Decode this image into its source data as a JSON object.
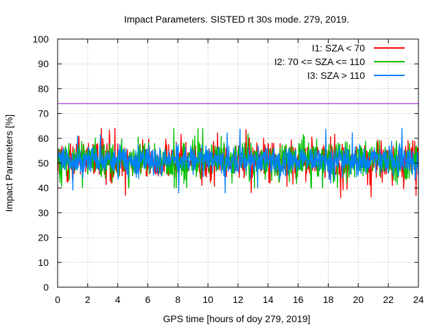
{
  "chart_data": {
    "type": "line",
    "title": "Impact Parameters. SISTED rt 30s mode. 279, 2019.",
    "xlabel": "GPS time [hours of doy 279, 2019]",
    "ylabel": "Impact Parameters [%]",
    "xlim": [
      0,
      24
    ],
    "ylim": [
      0,
      100
    ],
    "x_ticks": [
      "0",
      "2",
      "4",
      "6",
      "8",
      "10",
      "12",
      "14",
      "16",
      "18",
      "20",
      "22",
      "24"
    ],
    "y_ticks": [
      "0",
      "10",
      "20",
      "30",
      "40",
      "50",
      "60",
      "70",
      "80",
      "90",
      "100"
    ],
    "grid": true,
    "legend_position": "top-right",
    "threshold_line": {
      "value": 74,
      "color": "#9400d3"
    },
    "series": [
      {
        "name": "I1: SZA < 70",
        "color": "#ff0000",
        "mean": 51,
        "typical_range": [
          44,
          59
        ],
        "min": 36,
        "max": 64
      },
      {
        "name": "I2: 70 <= SZA <= 110",
        "color": "#00c000",
        "mean": 51,
        "typical_range": [
          44,
          59
        ],
        "min": 40,
        "max": 64
      },
      {
        "name": "I3: SZA > 110",
        "color": "#0080ff",
        "mean": 51,
        "typical_range": [
          45,
          57
        ],
        "min": 38,
        "max": 64
      }
    ]
  }
}
